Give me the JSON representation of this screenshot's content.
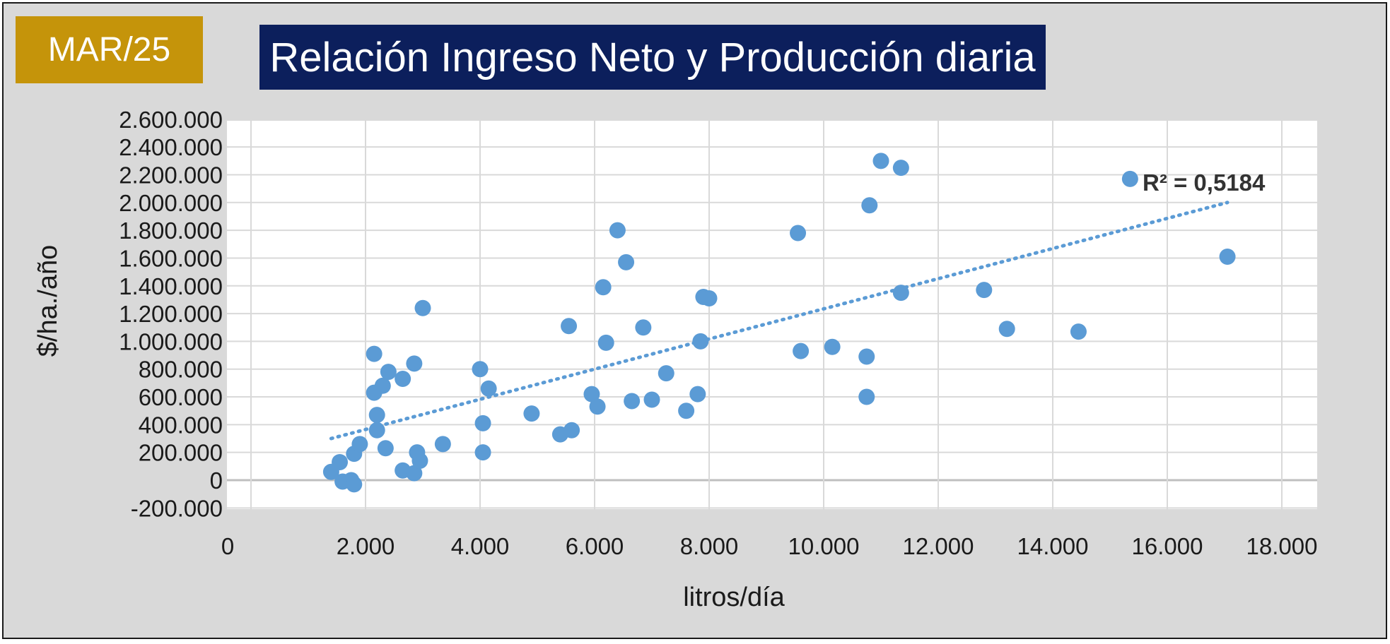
{
  "badge": {
    "text": "MAR/25",
    "color": "#c5940a"
  },
  "title": {
    "text": "Relación Ingreso Neto y Producción diaria",
    "color": "#0c1f5c"
  },
  "chart_data": {
    "type": "scatter",
    "title": "Relación Ingreso Neto y Producción diaria",
    "xlabel": "litros/día",
    "ylabel": "$/ha./año",
    "xlim": [
      0,
      18000
    ],
    "ylim": [
      -200000,
      2600000
    ],
    "x_ticks": [
      0,
      2000,
      4000,
      6000,
      8000,
      10000,
      12000,
      14000,
      16000,
      18000
    ],
    "x_tick_labels": [
      "0",
      "2.000",
      "4.000",
      "6.000",
      "8.000",
      "10.000",
      "12.000",
      "14.000",
      "16.000",
      "18.000"
    ],
    "y_ticks": [
      -200000,
      0,
      200000,
      400000,
      600000,
      800000,
      1000000,
      1200000,
      1400000,
      1600000,
      1800000,
      2000000,
      2200000,
      2400000,
      2600000
    ],
    "y_tick_labels": [
      "-200.000",
      "0",
      "200.000",
      "400.000",
      "600.000",
      "800.000",
      "1.000.000",
      "1.200.000",
      "1.400.000",
      "1.600.000",
      "1.800.000",
      "2.000.000",
      "2.200.000",
      "2.400.000",
      "2.600.000"
    ],
    "grid": true,
    "marker_color": "#5b9bd5",
    "trendline": {
      "type": "linear",
      "style": "dotted",
      "color": "#5b9bd5",
      "x": [
        1400,
        17050
      ],
      "y": [
        300000,
        2000000
      ],
      "label": "R² = 0,5184"
    },
    "series": [
      {
        "points": [
          [
            1400,
            60000
          ],
          [
            1550,
            130000
          ],
          [
            1600,
            -10000
          ],
          [
            1750,
            0
          ],
          [
            1800,
            -30000
          ],
          [
            1800,
            190000
          ],
          [
            1900,
            260000
          ],
          [
            2150,
            910000
          ],
          [
            2150,
            630000
          ],
          [
            2200,
            470000
          ],
          [
            2200,
            360000
          ],
          [
            2300,
            680000
          ],
          [
            2350,
            230000
          ],
          [
            2400,
            780000
          ],
          [
            2650,
            730000
          ],
          [
            2650,
            70000
          ],
          [
            2850,
            50000
          ],
          [
            2850,
            840000
          ],
          [
            2900,
            200000
          ],
          [
            2950,
            140000
          ],
          [
            3000,
            1240000
          ],
          [
            3350,
            260000
          ],
          [
            4000,
            800000
          ],
          [
            4050,
            410000
          ],
          [
            4050,
            200000
          ],
          [
            4150,
            660000
          ],
          [
            4900,
            480000
          ],
          [
            5400,
            330000
          ],
          [
            5550,
            1110000
          ],
          [
            5600,
            360000
          ],
          [
            5950,
            620000
          ],
          [
            6050,
            530000
          ],
          [
            6150,
            1390000
          ],
          [
            6200,
            990000
          ],
          [
            6400,
            1800000
          ],
          [
            6550,
            1570000
          ],
          [
            6650,
            570000
          ],
          [
            6850,
            1100000
          ],
          [
            7000,
            580000
          ],
          [
            7250,
            770000
          ],
          [
            7600,
            500000
          ],
          [
            7800,
            620000
          ],
          [
            7850,
            1000000
          ],
          [
            7900,
            1320000
          ],
          [
            8000,
            1310000
          ],
          [
            9550,
            1780000
          ],
          [
            9600,
            930000
          ],
          [
            10150,
            960000
          ],
          [
            10750,
            890000
          ],
          [
            10750,
            600000
          ],
          [
            10800,
            1980000
          ],
          [
            11000,
            2300000
          ],
          [
            11350,
            2250000
          ],
          [
            11350,
            1350000
          ],
          [
            12800,
            1370000
          ],
          [
            13200,
            1090000
          ],
          [
            14450,
            1070000
          ],
          [
            15350,
            2170000
          ],
          [
            17050,
            1610000
          ]
        ]
      }
    ]
  }
}
